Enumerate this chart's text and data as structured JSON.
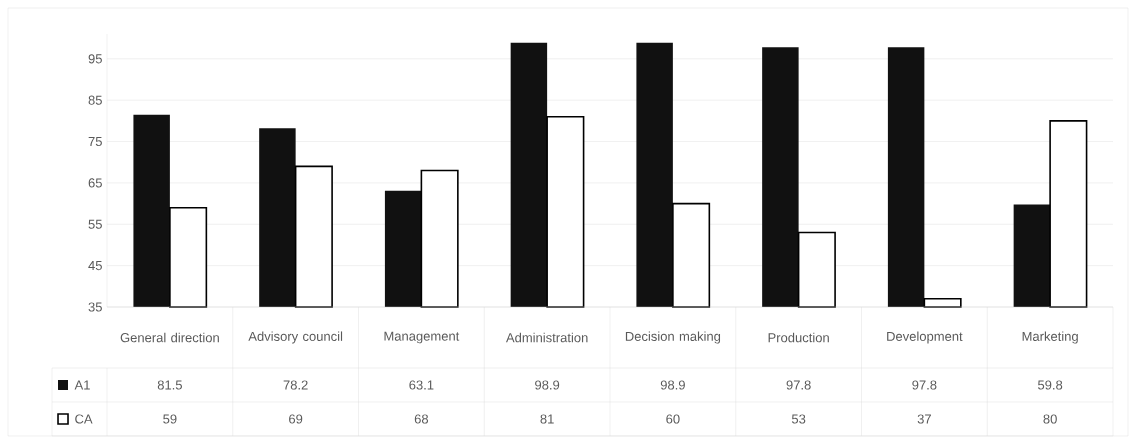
{
  "chart_data": {
    "type": "bar",
    "categories": [
      "General direction",
      "Advisory council",
      "Management",
      "Administration",
      "Decision making",
      "Production",
      "Development",
      "Marketing"
    ],
    "series": [
      {
        "name": "A1",
        "color": "#111111",
        "values": [
          81.5,
          78.2,
          63.1,
          98.9,
          98.9,
          97.8,
          97.8,
          59.8
        ],
        "value_labels": [
          "81.5",
          "78.2",
          "63.1",
          "98.9",
          "98.9",
          "97.8",
          "97.8",
          "59.8"
        ]
      },
      {
        "name": "CA",
        "color": "#ffffff",
        "values": [
          59,
          69,
          68,
          81,
          60,
          53,
          37,
          80
        ],
        "value_labels": [
          "59",
          "69",
          "68",
          "81",
          "60",
          "53",
          "37",
          "80"
        ]
      }
    ],
    "ylim": [
      35,
      101
    ],
    "yticks": [
      35,
      45,
      55,
      65,
      75,
      85,
      95
    ],
    "grid": "y",
    "legend": "bottom"
  }
}
